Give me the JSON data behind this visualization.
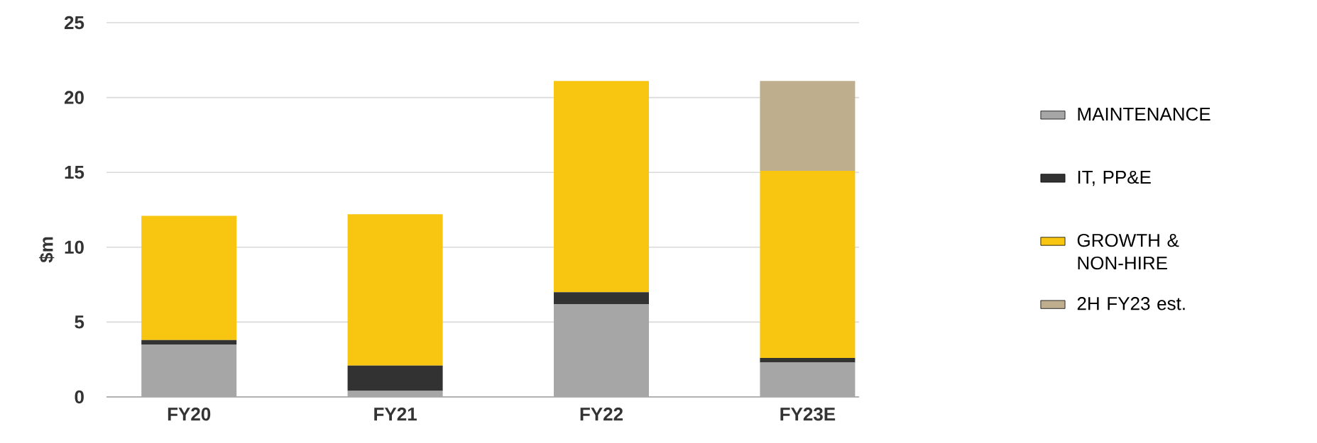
{
  "chart_data": {
    "type": "bar",
    "stacked": true,
    "ylabel": "$m",
    "categories": [
      "FY20",
      "FY21",
      "FY22",
      "FY23E"
    ],
    "series": [
      {
        "name": "MAINTENANCE",
        "color": "#a6a6a6",
        "values": [
          3.5,
          0.4,
          6.2,
          2.3
        ]
      },
      {
        "name": "IT, PP&E",
        "color": "#323232",
        "values": [
          0.3,
          1.7,
          0.8,
          0.3
        ]
      },
      {
        "name": "GROWTH & NON-HIRE",
        "color": "#f8c611",
        "values": [
          8.3,
          10.1,
          14.1,
          12.5
        ]
      },
      {
        "name": "2H FY23 est.",
        "color": "#bfae8e",
        "values": [
          null,
          null,
          null,
          6.0
        ]
      }
    ],
    "ylim": [
      0,
      25
    ],
    "yticks": [
      0,
      5,
      10,
      15,
      20,
      25
    ],
    "grid": "y",
    "legend": "right"
  }
}
